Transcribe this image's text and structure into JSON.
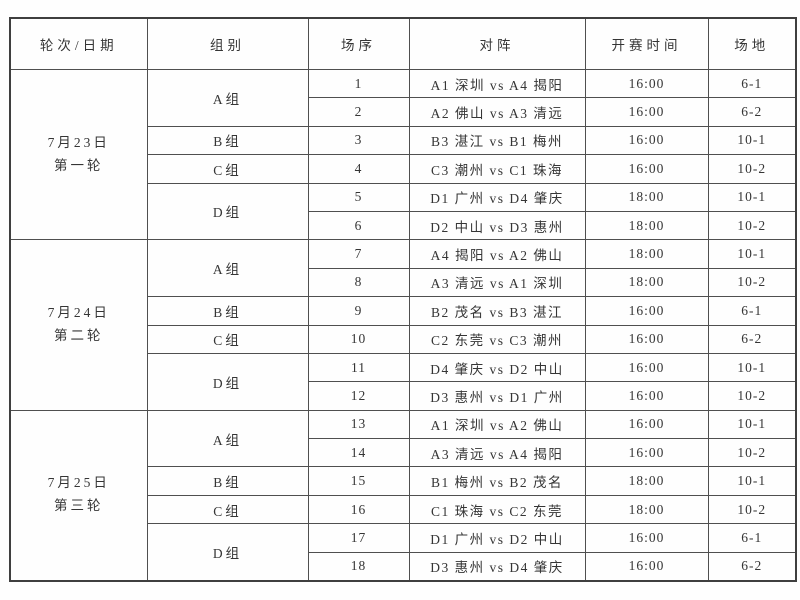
{
  "theme": {
    "background": "#fefefe",
    "line_color": "#4f4f4f",
    "text_color": "#353535"
  },
  "table": {
    "headers": [
      "轮次/日期",
      "组别",
      "场序",
      "对阵",
      "开赛时间",
      "场地"
    ],
    "rounds": [
      {
        "date": "7月23日",
        "round_label": "第一轮",
        "groups": [
          {
            "label": "A组",
            "matches": [
              {
                "no": "1",
                "pairing": "A1 深圳 vs A4 揭阳",
                "time": "16:00",
                "venue": "6-1"
              },
              {
                "no": "2",
                "pairing": "A2 佛山 vs A3 清远",
                "time": "16:00",
                "venue": "6-2"
              }
            ]
          },
          {
            "label": "B组",
            "matches": [
              {
                "no": "3",
                "pairing": "B3 湛江 vs B1 梅州",
                "time": "16:00",
                "venue": "10-1"
              }
            ]
          },
          {
            "label": "C组",
            "matches": [
              {
                "no": "4",
                "pairing": "C3 潮州 vs C1 珠海",
                "time": "16:00",
                "venue": "10-2"
              }
            ]
          },
          {
            "label": "D组",
            "matches": [
              {
                "no": "5",
                "pairing": "D1 广州 vs D4 肇庆",
                "time": "18:00",
                "venue": "10-1"
              },
              {
                "no": "6",
                "pairing": "D2 中山 vs D3 惠州",
                "time": "18:00",
                "venue": "10-2"
              }
            ]
          }
        ]
      },
      {
        "date": "7月24日",
        "round_label": "第二轮",
        "groups": [
          {
            "label": "A组",
            "matches": [
              {
                "no": "7",
                "pairing": "A4 揭阳 vs A2 佛山",
                "time": "18:00",
                "venue": "10-1"
              },
              {
                "no": "8",
                "pairing": "A3 清远 vs A1 深圳",
                "time": "18:00",
                "venue": "10-2"
              }
            ]
          },
          {
            "label": "B组",
            "matches": [
              {
                "no": "9",
                "pairing": "B2 茂名 vs B3 湛江",
                "time": "16:00",
                "venue": "6-1"
              }
            ]
          },
          {
            "label": "C组",
            "matches": [
              {
                "no": "10",
                "pairing": "C2 东莞 vs C3 潮州",
                "time": "16:00",
                "venue": "6-2"
              }
            ]
          },
          {
            "label": "D组",
            "matches": [
              {
                "no": "11",
                "pairing": "D4 肇庆 vs D2 中山",
                "time": "16:00",
                "venue": "10-1"
              },
              {
                "no": "12",
                "pairing": "D3 惠州 vs D1 广州",
                "time": "16:00",
                "venue": "10-2"
              }
            ]
          }
        ]
      },
      {
        "date": "7月25日",
        "round_label": "第三轮",
        "groups": [
          {
            "label": "A组",
            "matches": [
              {
                "no": "13",
                "pairing": "A1 深圳 vs A2 佛山",
                "time": "16:00",
                "venue": "10-1"
              },
              {
                "no": "14",
                "pairing": "A3 清远 vs A4 揭阳",
                "time": "16:00",
                "venue": "10-2"
              }
            ]
          },
          {
            "label": "B组",
            "matches": [
              {
                "no": "15",
                "pairing": "B1 梅州 vs B2 茂名",
                "time": "18:00",
                "venue": "10-1"
              }
            ]
          },
          {
            "label": "C组",
            "matches": [
              {
                "no": "16",
                "pairing": "C1 珠海 vs C2 东莞",
                "time": "18:00",
                "venue": "10-2"
              }
            ]
          },
          {
            "label": "D组",
            "matches": [
              {
                "no": "17",
                "pairing": "D1 广州 vs D2 中山",
                "time": "16:00",
                "venue": "6-1"
              },
              {
                "no": "18",
                "pairing": "D3 惠州 vs D4 肇庆",
                "time": "16:00",
                "venue": "6-2"
              }
            ]
          }
        ]
      }
    ]
  }
}
